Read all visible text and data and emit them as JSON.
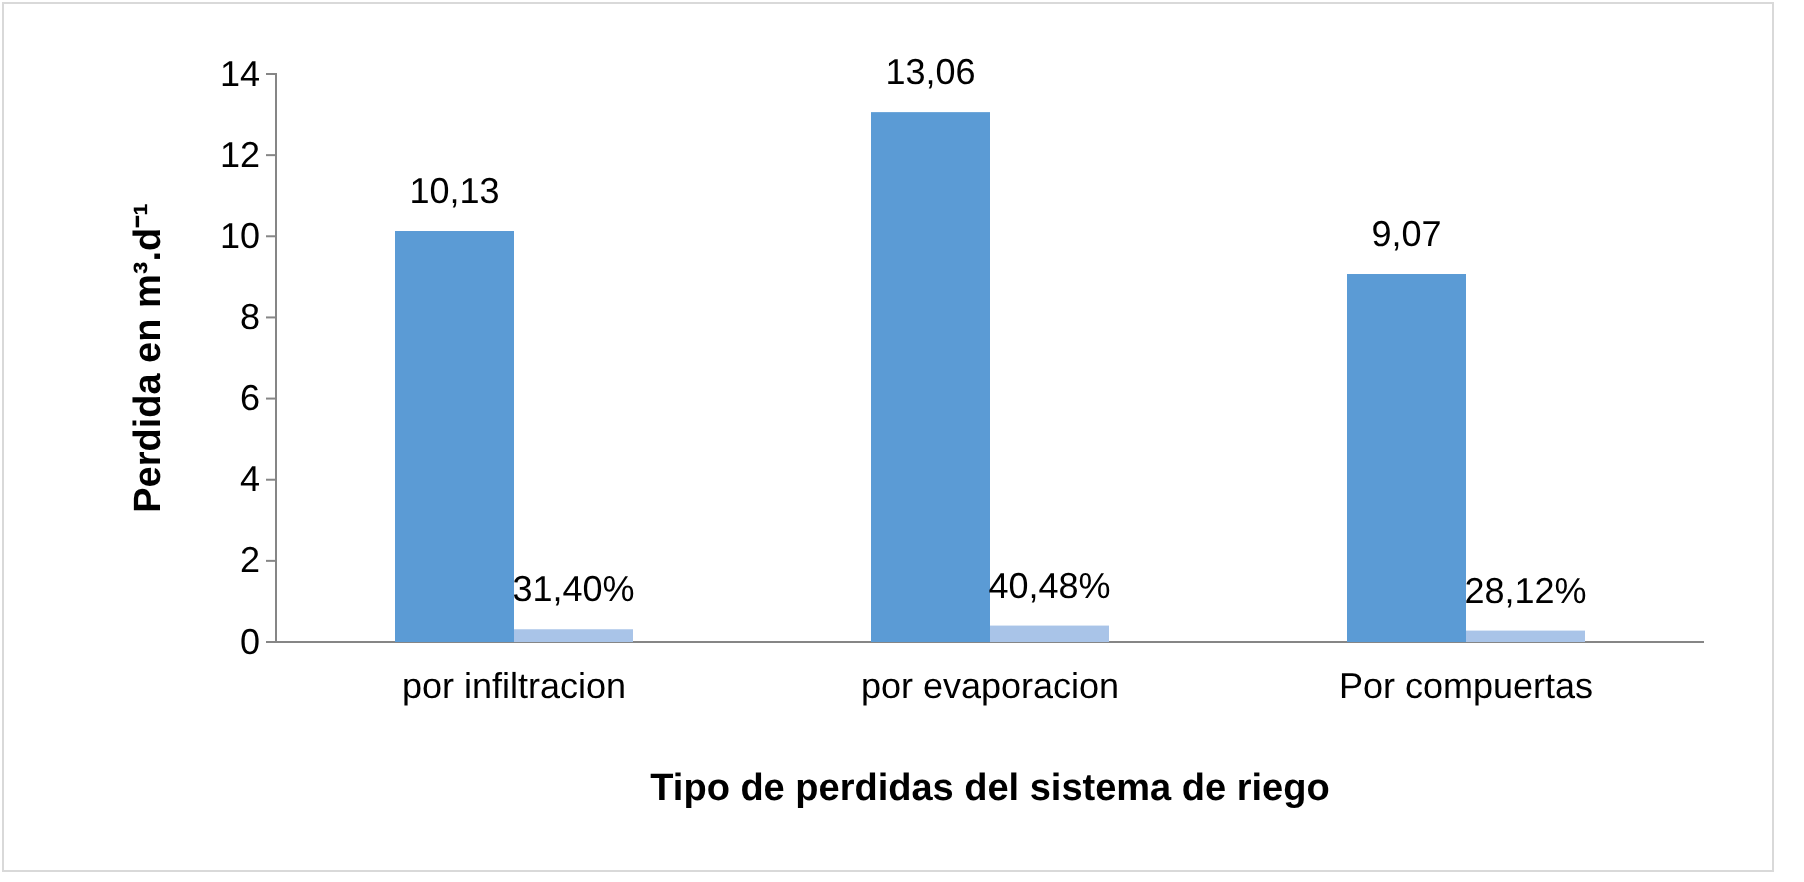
{
  "chart_data": {
    "type": "bar",
    "xlabel": "Tipo de perdidas del sistema de riego",
    "ylabel": "Perdida en m³.d⁻¹",
    "categories": [
      "por infiltracion",
      "por evaporacion",
      "Por compuertas"
    ],
    "series": [
      {
        "color": "#5b9bd5",
        "values": [
          10.13,
          13.06,
          9.07
        ],
        "value_labels": [
          "10,13",
          "13,06",
          "9,07"
        ]
      },
      {
        "color": "#a9c4e8",
        "values": [
          0.314,
          0.4048,
          0.2812
        ],
        "value_labels": [
          "31,40%",
          "40,48%",
          "28,12%"
        ]
      }
    ],
    "ylim": [
      0,
      14
    ],
    "yticks": [
      0,
      2,
      4,
      6,
      8,
      10,
      12,
      14
    ],
    "grid": false
  }
}
